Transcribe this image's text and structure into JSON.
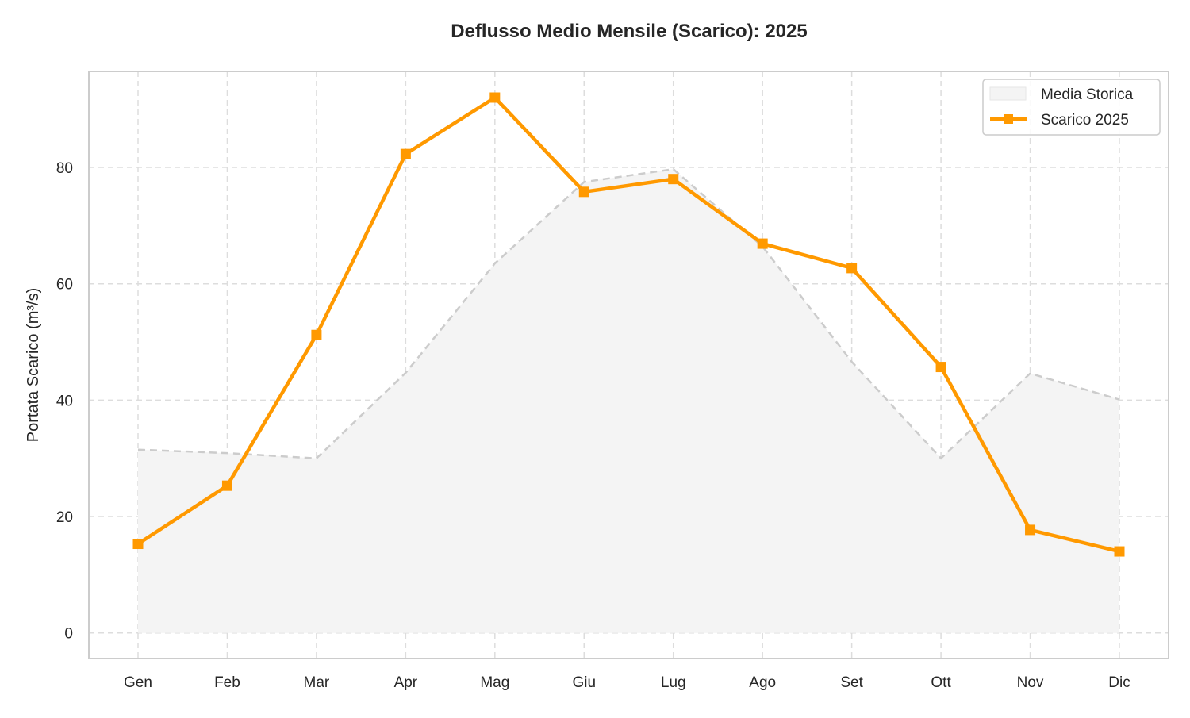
{
  "chart_data": {
    "type": "line",
    "title": "Deflusso Medio Mensile (Scarico): 2025",
    "xlabel": "",
    "ylabel": "Portata Scarico (m³/s)",
    "categories": [
      "Gen",
      "Feb",
      "Mar",
      "Apr",
      "Mag",
      "Giu",
      "Lug",
      "Ago",
      "Set",
      "Ott",
      "Nov",
      "Dic"
    ],
    "ylim": [
      -4.4,
      96.5
    ],
    "yticks": [
      0,
      20,
      40,
      60,
      80
    ],
    "grid": true,
    "legend_position": "top-right",
    "series": [
      {
        "name": "Media Storica",
        "kind": "area-dashed",
        "color": "#cccccc",
        "fill": "#f4f4f4",
        "values": [
          31.5,
          30.9,
          30.0,
          44.7,
          63.5,
          77.5,
          79.7,
          66.4,
          46.6,
          30.0,
          44.6,
          40.1
        ]
      },
      {
        "name": "Scarico 2025",
        "kind": "line-square-markers",
        "color": "#ff9900",
        "values": [
          15.3,
          25.3,
          51.2,
          82.3,
          92.0,
          75.8,
          78.0,
          66.9,
          62.7,
          45.7,
          17.7,
          14.0
        ]
      }
    ]
  }
}
